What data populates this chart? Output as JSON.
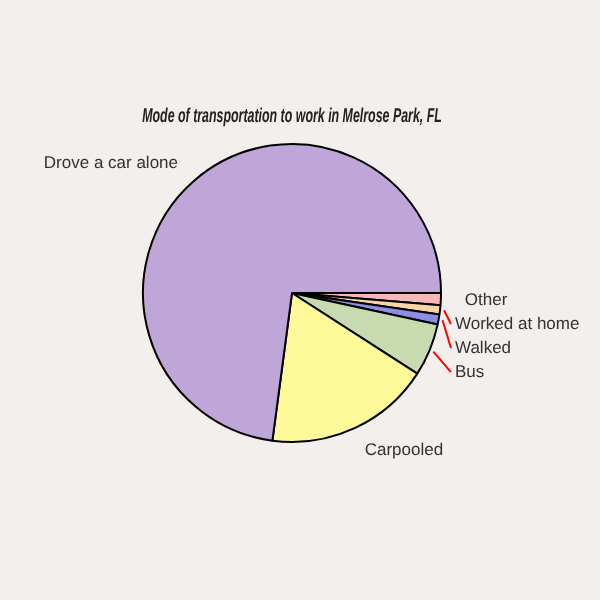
{
  "chart_data": {
    "type": "pie",
    "title": "Mode of transportation to work in Melrose Park, FL",
    "categories": [
      "Other",
      "Worked at home",
      "Walked",
      "Bus",
      "Carpooled",
      "Drove a car alone"
    ],
    "values": [
      1.3,
      1.0,
      1.1,
      5.7,
      18.0,
      72.9
    ],
    "colors": [
      "#f7b8bc",
      "#f9d4a8",
      "#8d8de6",
      "#c8dbb0",
      "#fefa9a",
      "#bfa5d8"
    ],
    "legend": false
  }
}
